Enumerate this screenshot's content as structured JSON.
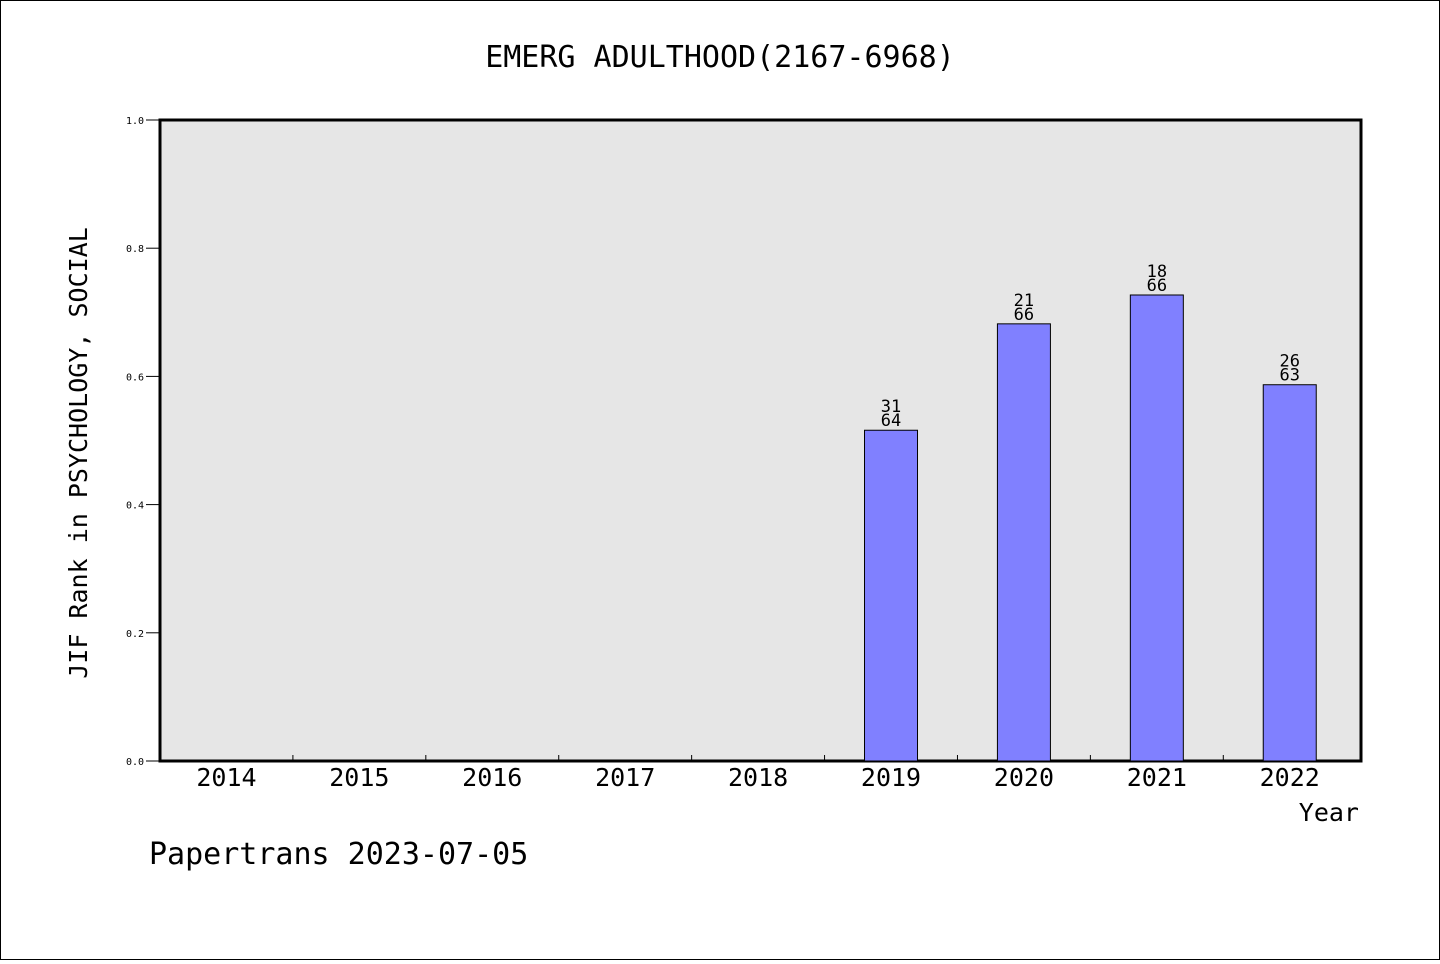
{
  "chart_data": {
    "type": "bar",
    "title": "EMERG ADULTHOOD(2167-6968)",
    "xlabel": "Year",
    "ylabel": "JIF Rank in PSYCHOLOGY, SOCIAL",
    "categories": [
      "2014",
      "2015",
      "2016",
      "2017",
      "2018",
      "2019",
      "2020",
      "2021",
      "2022"
    ],
    "values": [
      null,
      null,
      null,
      null,
      null,
      0.516,
      0.682,
      0.727,
      0.587
    ],
    "bar_labels": [
      null,
      null,
      null,
      null,
      null,
      {
        "rank": "31",
        "total": "64"
      },
      {
        "rank": "21",
        "total": "66"
      },
      {
        "rank": "18",
        "total": "66"
      },
      {
        "rank": "26",
        "total": "63"
      }
    ],
    "ylim": [
      0,
      1.0
    ],
    "yticks": [
      "0.0",
      "0.2",
      "0.4",
      "0.6",
      "0.8",
      "1.0"
    ],
    "grid": false,
    "colors": {
      "bar": "#8080ff",
      "plot_background": "#e6e6e6"
    }
  },
  "footer": {
    "watermark": "Papertrans 2023-07-05"
  }
}
